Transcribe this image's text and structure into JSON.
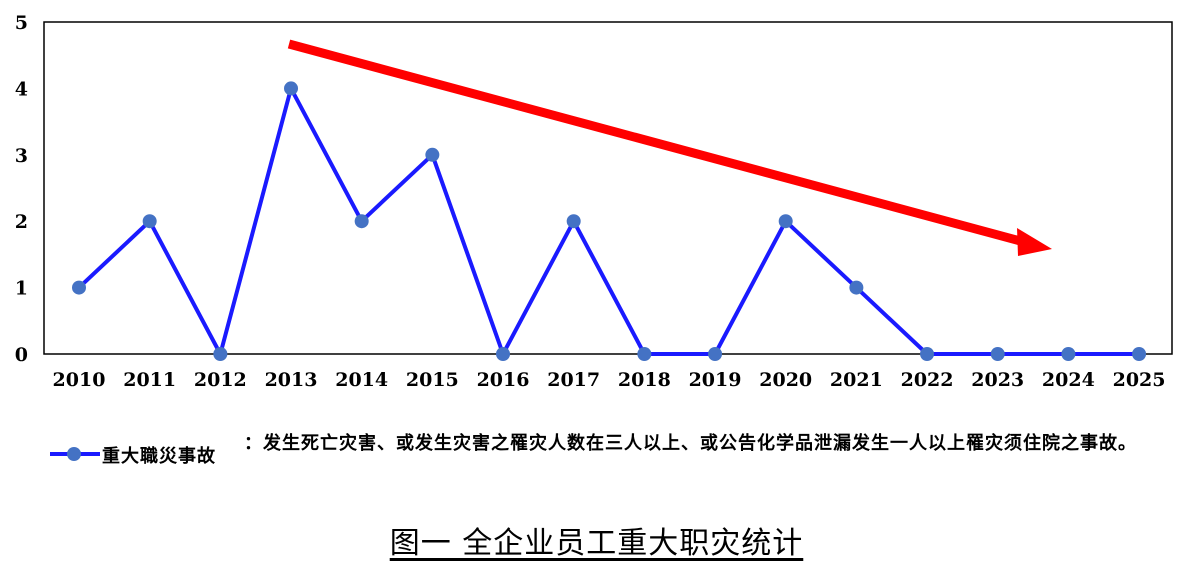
{
  "chart_data": {
    "type": "line",
    "categories": [
      "2010",
      "2011",
      "2012",
      "2013",
      "2014",
      "2015",
      "2016",
      "2017",
      "2018",
      "2019",
      "2020",
      "2021",
      "2022",
      "2023",
      "2024",
      "2025"
    ],
    "series": [
      {
        "name": "重大職災事故",
        "values": [
          1,
          2,
          0,
          4,
          2,
          3,
          0,
          2,
          0,
          0,
          2,
          1,
          0,
          0,
          0,
          0
        ]
      }
    ],
    "ylim": [
      0,
      5
    ],
    "yticks": [
      "0",
      "1",
      "2",
      "3",
      "4",
      "5"
    ],
    "grid": false,
    "annotation": "decreasing trend arrow",
    "colors": {
      "line": "#1a1aff",
      "marker": "#4472c4",
      "arrow": "#ff0000"
    }
  },
  "legend": {
    "name": "重大職災事故",
    "description": "：发生死亡灾害、或发生灾害之罹灾人数在三人以上、或公告化学品泄漏发生一人以上罹灾须住院之事故。"
  },
  "caption": "图一 全企业员工重大职灾统计"
}
